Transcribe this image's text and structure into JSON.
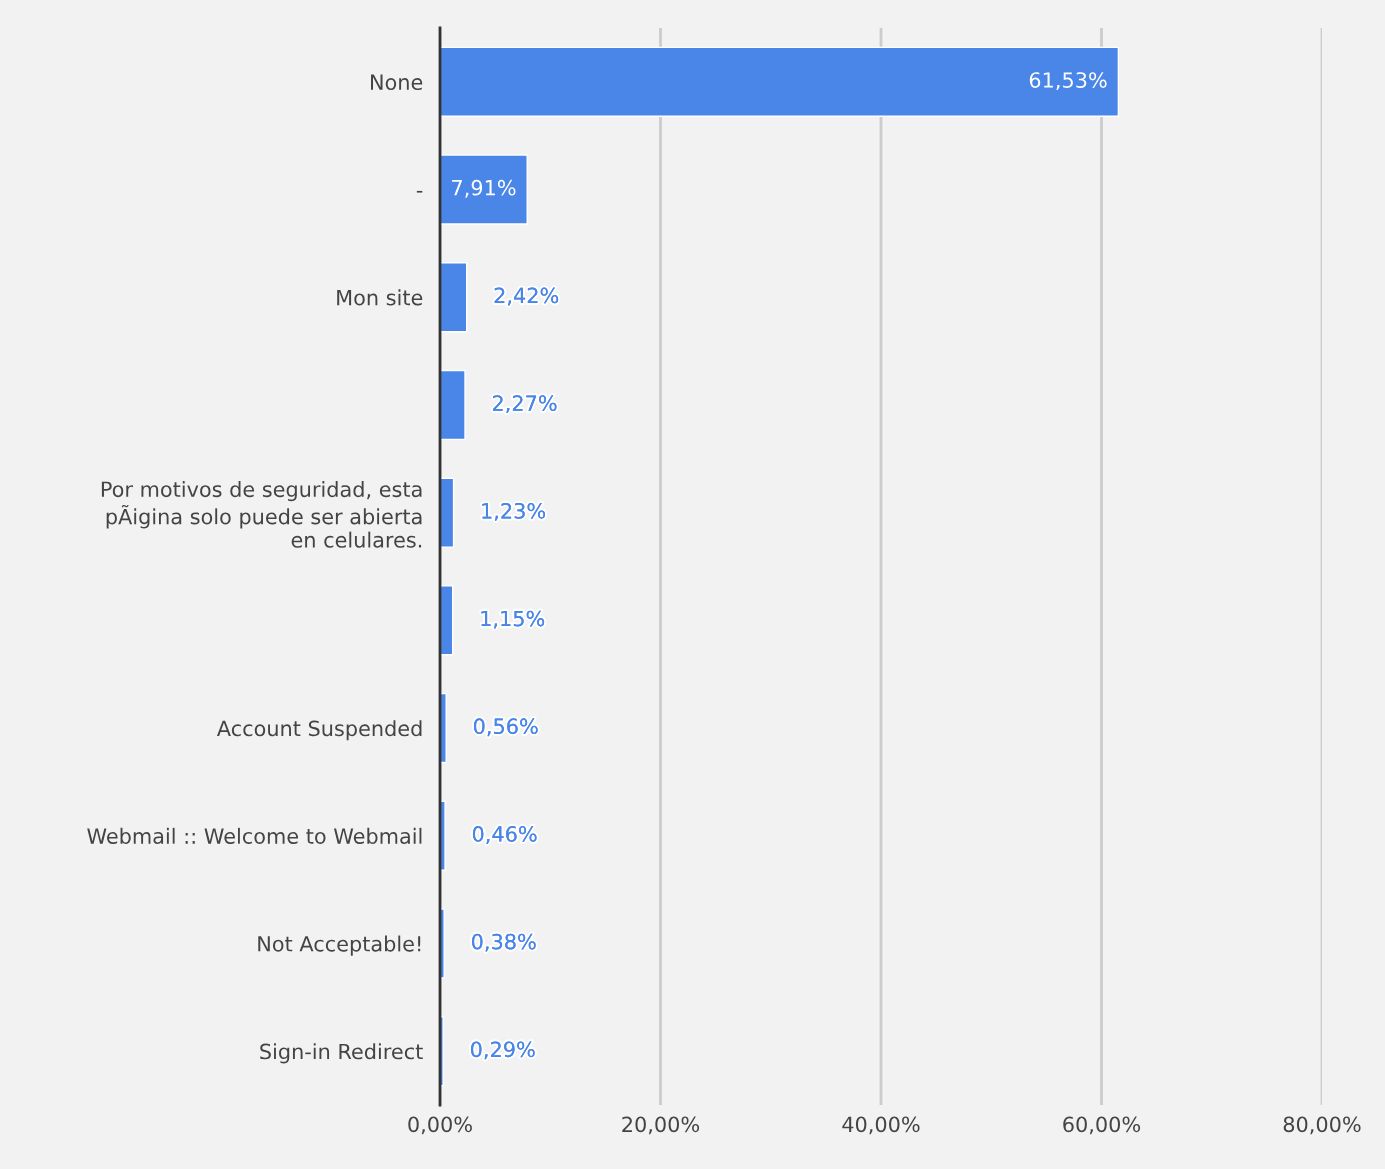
{
  "chart_data": {
    "type": "bar",
    "orientation": "horizontal",
    "categories": [
      "None",
      "-",
      "Mon site",
      null,
      "Por motivos de seguridad, esta\npÃigina solo puede ser abierta\nen celulares.",
      null,
      "Account Suspended",
      "Webmail :: Welcome to Webmail",
      "Not Acceptable!",
      "Sign-in Redirect"
    ],
    "values": [
      61.53,
      7.91,
      2.42,
      2.27,
      1.23,
      1.15,
      0.56,
      0.46,
      0.38,
      0.29
    ],
    "value_labels": [
      "61,53%",
      "7,91%",
      "2,42%",
      "2,27%",
      "1,23%",
      "1,15%",
      "0,56%",
      "0,46%",
      "0,38%",
      "0,29%"
    ],
    "color": "#4a86e8",
    "xlim": [
      0,
      80
    ],
    "xticks": [
      {
        "value": 0,
        "label": "0,00%"
      },
      {
        "value": 20,
        "label": "20,00%"
      },
      {
        "value": 40,
        "label": "40,00%"
      },
      {
        "value": 60,
        "label": "60,00%"
      },
      {
        "value": 80,
        "label": "80,00%"
      }
    ],
    "grid": "x",
    "legend": false
  }
}
